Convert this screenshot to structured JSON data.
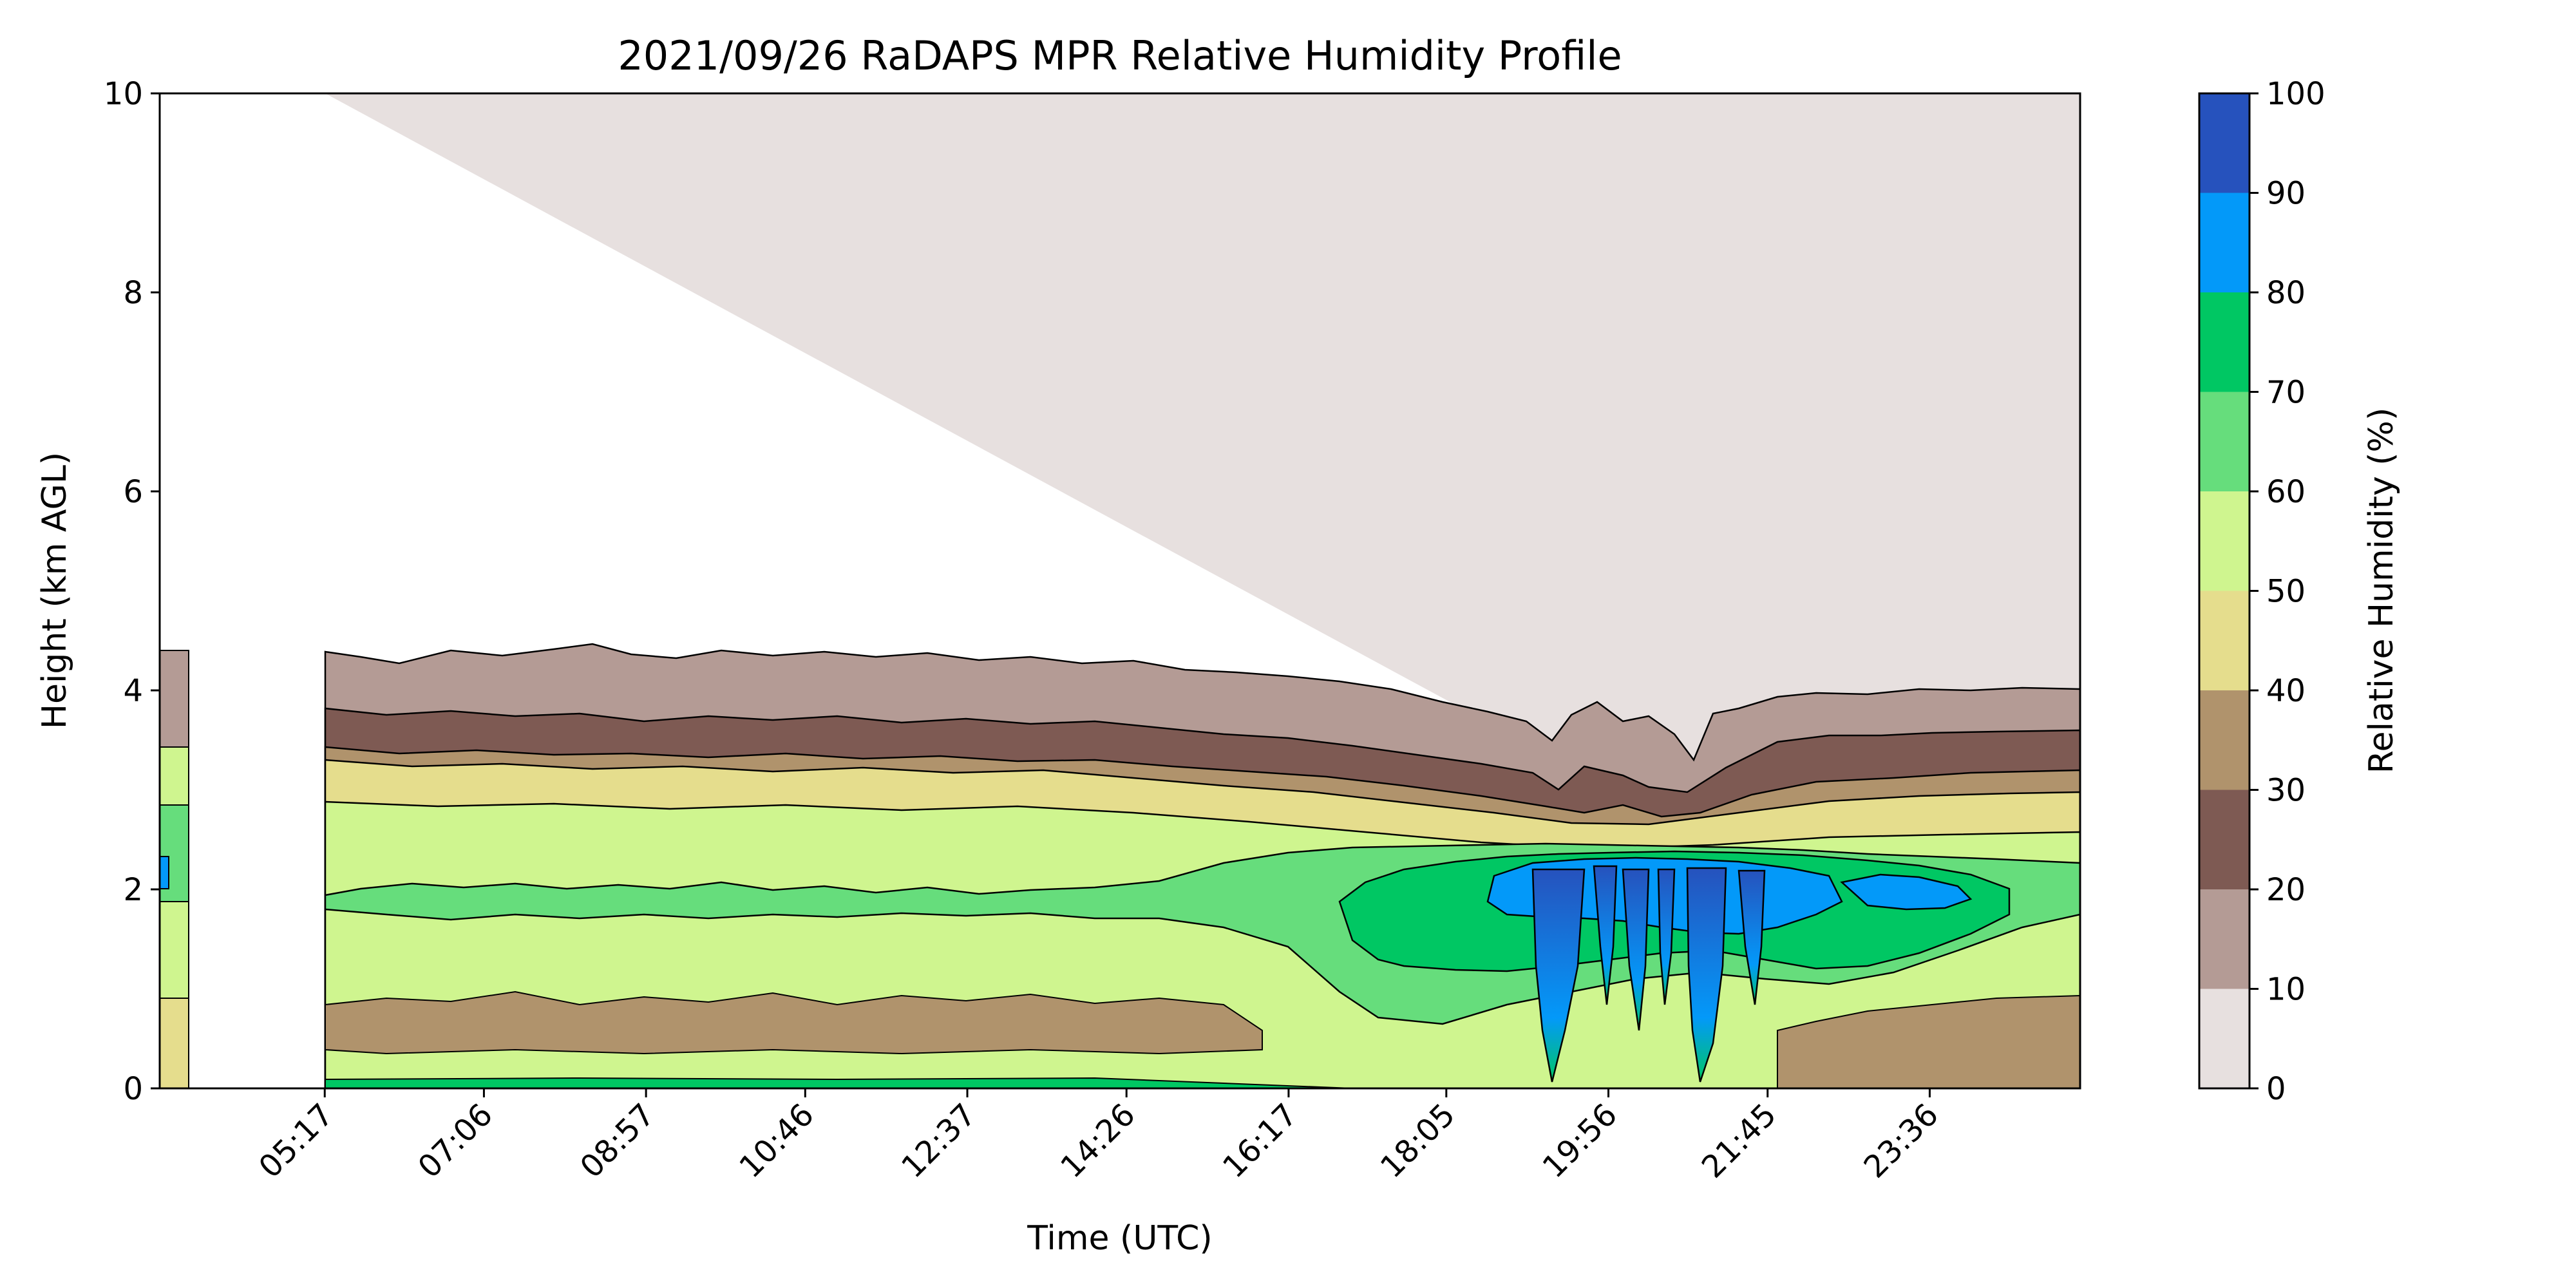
{
  "chart_data": {
    "type": "contour",
    "title": "2021/09/26 RaDAPS MPR Relative Humidity Profile",
    "xlabel": "Time (UTC)",
    "ylabel": "Height (km AGL)",
    "colorbar_label": "Relative Humidity (%)",
    "x_tick_labels": [
      "05:17",
      "07:06",
      "08:57",
      "10:46",
      "12:37",
      "14:26",
      "16:17",
      "18:05",
      "19:56",
      "21:45",
      "23:36"
    ],
    "xlim": [
      "03:24",
      "25:19"
    ],
    "ylim": [
      0,
      10
    ],
    "y_ticks": [
      0,
      2,
      4,
      6,
      8,
      10
    ],
    "levels": [
      0,
      10,
      20,
      30,
      40,
      50,
      60,
      70,
      80,
      90,
      100
    ],
    "level_colors": [
      "#e7e0df",
      "#b49b95",
      "#7e5a53",
      "#b0936c",
      "#e5dd8d",
      "#cff58f",
      "#66dd7c",
      "#00c763",
      "#0399f9",
      "#2652bd"
    ],
    "observations": [
      {
        "time_range": [
          "05:17",
          "25:19"
        ],
        "bands_top_km": [
          {
            "level": "60-70",
            "from": 1.2,
            "to": 2.6
          },
          {
            "level": "50-60",
            "from": 0.8,
            "to": 2.9
          },
          {
            "level": "40-50",
            "from": 0.4,
            "to": 3.2
          },
          {
            "level": "30-40",
            "from": 0.2,
            "to": 0.9
          },
          {
            "level": "20-30",
            "from": 3.2,
            "to": 3.7
          },
          {
            "level": "10-20",
            "from": 3.7,
            "to": 4.3
          }
        ]
      },
      {
        "time_range": [
          "17:30",
          "22:30"
        ],
        "moist_layer_km": [
          1.0,
          2.4
        ],
        "max_rh": 100
      }
    ]
  }
}
